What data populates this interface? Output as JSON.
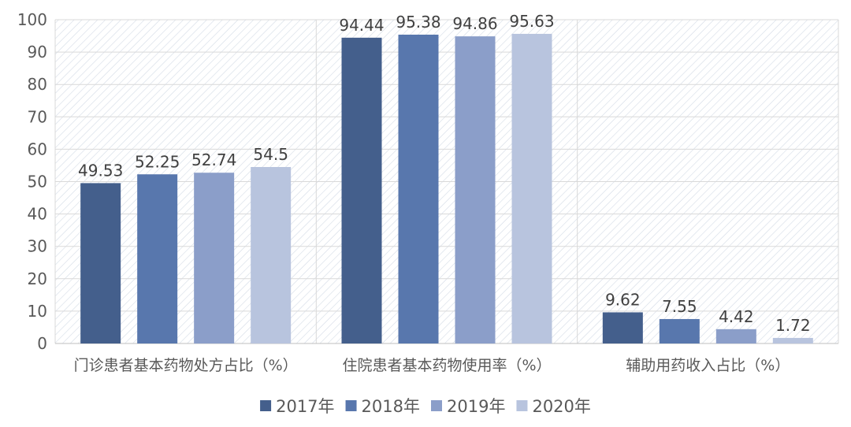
{
  "chart_data": {
    "type": "bar",
    "title": "",
    "xlabel": "",
    "ylabel": "",
    "categories": [
      "门诊患者基本药物处方占比（%）",
      "住院患者基本药物使用率（%）",
      "辅助用药收入占比（%）"
    ],
    "series": [
      {
        "name": "2017年",
        "values": [
          49.53,
          94.44,
          9.62
        ],
        "color": "#445f8c"
      },
      {
        "name": "2018年",
        "values": [
          52.25,
          95.38,
          7.55
        ],
        "color": "#5877ad"
      },
      {
        "name": "2019年",
        "values": [
          52.74,
          94.86,
          4.42
        ],
        "color": "#8b9ec9"
      },
      {
        "name": "2020年",
        "values": [
          54.5,
          95.63,
          1.72
        ],
        "color": "#b8c4de"
      }
    ],
    "ylim": [
      0,
      100
    ],
    "yticks": [
      0,
      10,
      20,
      30,
      40,
      50,
      60,
      70,
      80,
      90,
      100
    ],
    "grid": true,
    "legend_position": "bottom"
  }
}
